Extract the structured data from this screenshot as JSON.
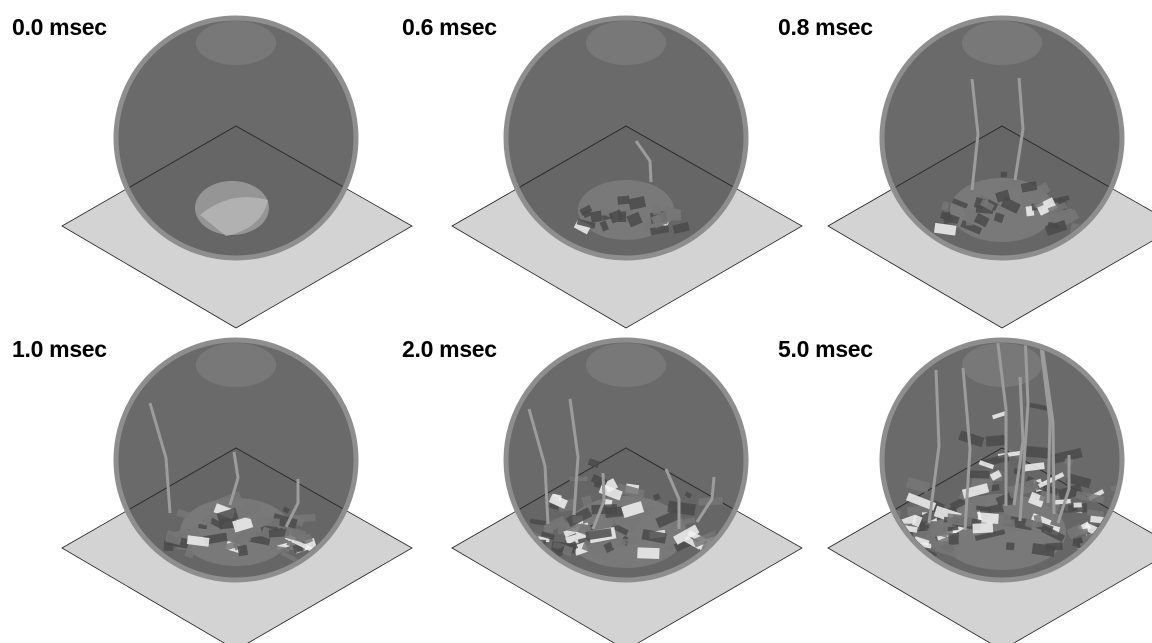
{
  "colors": {
    "background": "#ffffff",
    "plane_fill": "#d3d3d3",
    "plane_edge": "#222222",
    "sphere_fill": "#5a5a5a",
    "sphere_rim": "#8e8e8e",
    "fragment": "#777777",
    "fragment_light": "#f2f2f2",
    "contact_spot": "#9a9a9a",
    "label_text": "#000000"
  },
  "panels": [
    {
      "time": "0.0 msec",
      "stage": 0
    },
    {
      "time": "0.6 msec",
      "stage": 1
    },
    {
      "time": "0.8 msec",
      "stage": 2
    },
    {
      "time": "1.0 msec",
      "stage": 3
    },
    {
      "time": "2.0 msec",
      "stage": 4
    },
    {
      "time": "5.0 msec",
      "stage": 5
    }
  ]
}
